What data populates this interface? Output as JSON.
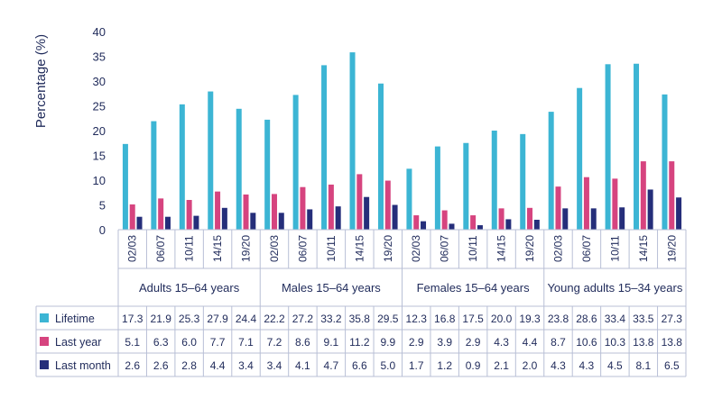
{
  "chart_data": {
    "type": "bar",
    "ylabel": "Percentage (%)",
    "ylim": [
      0,
      40
    ],
    "yticks": [
      0,
      5,
      10,
      15,
      20,
      25,
      30,
      35,
      40
    ],
    "grid": false,
    "legend_placement": "table-left",
    "groups": [
      {
        "name": "Adults 15–64 years",
        "categories": [
          "02/03",
          "06/07",
          "10/11",
          "14/15",
          "19/20"
        ]
      },
      {
        "name": "Males 15–64 years",
        "categories": [
          "02/03",
          "06/07",
          "10/11",
          "14/15",
          "19/20"
        ]
      },
      {
        "name": "Females 15–64 years",
        "categories": [
          "02/03",
          "06/07",
          "10/11",
          "14/15",
          "19/20"
        ]
      },
      {
        "name": "Young adults 15–34 years",
        "categories": [
          "02/03",
          "06/07",
          "10/11",
          "14/15",
          "19/20"
        ]
      }
    ],
    "series": [
      {
        "name": "Lifetime",
        "color": "#3cb5d4",
        "values": [
          17.3,
          21.9,
          25.3,
          27.9,
          24.4,
          22.2,
          27.2,
          33.2,
          35.8,
          29.5,
          12.3,
          16.8,
          17.5,
          20.0,
          19.3,
          23.8,
          28.6,
          33.4,
          33.5,
          27.3
        ],
        "labels": [
          "17.3",
          "21.9",
          "25.3",
          "27.9",
          "24.4",
          "22.2",
          "27.2",
          "33.2",
          "35.8",
          "29.5",
          "12.3",
          "16.8",
          "17.5",
          "20.0",
          "19.3",
          "23.8",
          "28.6",
          "33.4",
          "33.5",
          "27.3"
        ]
      },
      {
        "name": "Last year",
        "color": "#d6447f",
        "values": [
          5.1,
          6.3,
          6.0,
          7.7,
          7.1,
          7.2,
          8.6,
          9.1,
          11.2,
          9.9,
          2.9,
          3.9,
          2.9,
          4.3,
          4.4,
          8.7,
          10.6,
          10.3,
          13.8,
          13.8
        ],
        "labels": [
          "5.1",
          "6.3",
          "6.0",
          "7.7",
          "7.1",
          "7.2",
          "8.6",
          "9.1",
          "11.2",
          "9.9",
          "2.9",
          "3.9",
          "2.9",
          "4.3",
          "4.4",
          "8.7",
          "10.6",
          "10.3",
          "13.8",
          "13.8"
        ]
      },
      {
        "name": "Last month",
        "color": "#252e7a",
        "values": [
          2.6,
          2.6,
          2.8,
          4.4,
          3.4,
          3.4,
          4.1,
          4.7,
          6.6,
          5.0,
          1.7,
          1.2,
          0.9,
          2.1,
          2.0,
          4.3,
          4.3,
          4.5,
          8.1,
          6.5
        ],
        "labels": [
          "2.6",
          "2.6",
          "2.8",
          "4.4",
          "3.4",
          "3.4",
          "4.1",
          "4.7",
          "6.6",
          "5.0",
          "1.7",
          "1.2",
          "0.9",
          "2.1",
          "2.0",
          "4.3",
          "4.3",
          "4.5",
          "8.1",
          "6.5"
        ]
      }
    ],
    "colors": {
      "text": "#1f2a5a",
      "border": "#b8bfd6"
    }
  }
}
